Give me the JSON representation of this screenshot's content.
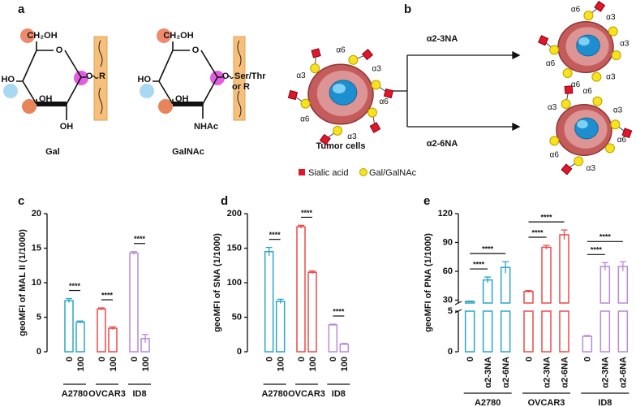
{
  "diagram": {
    "panel_a": "a",
    "panel_b": "b",
    "gal": {
      "ch2oh": "CH₂OH",
      "ho": "HO",
      "oh_upper": "OH",
      "oh_lower": "OH",
      "linker_o": "O",
      "aglycone": "R",
      "name": "Gal"
    },
    "galnac": {
      "ch2oh": "CH₂OH",
      "ho": "HO",
      "oh_upper": "OH",
      "nhac": "NHAc",
      "linker_o": "O",
      "aglycone": "Ser/Thr",
      "aglycone_alt": "or R",
      "name": "GalNAc"
    },
    "cells": {
      "main": {
        "label": "Tumor cells",
        "linkages": [
          "α3",
          "α6",
          "α3",
          "α6",
          "α6",
          "α3"
        ]
      },
      "after_23": {
        "linkages": [
          "α6",
          "α3",
          "α3",
          "α6",
          "α6",
          "α3"
        ]
      },
      "after_26": {
        "linkages": [
          "α3",
          "α6",
          "α3",
          "α6",
          "α6",
          "α3"
        ]
      }
    },
    "treatments": [
      "α2-3NA",
      "α2-6NA"
    ],
    "legend": [
      "Sialic acid",
      "Gal/GalNAc"
    ]
  },
  "chart_data": [
    {
      "type": "bar",
      "panel": "c",
      "ylabel": "geoMFI of MAL II (1/1000)",
      "categories": [
        "0",
        "100"
      ],
      "series": [
        {
          "name": "A2780",
          "color": "#2aa7c6",
          "values": [
            7.4,
            4.3
          ],
          "errors": [
            0.3,
            0.15
          ]
        },
        {
          "name": "OVCAR3",
          "color": "#ee4a4a",
          "values": [
            6.2,
            3.4
          ],
          "errors": [
            0.15,
            0.2
          ]
        },
        {
          "name": "ID8",
          "color": "#b98ad8",
          "values": [
            14.3,
            1.9
          ],
          "errors": [
            0.2,
            0.6
          ]
        }
      ],
      "ylim": [
        0,
        20
      ],
      "yticks": [
        0,
        5,
        10,
        15,
        20
      ],
      "comparisons": [
        {
          "series": 0,
          "between": [
            0,
            1
          ],
          "label": "****"
        },
        {
          "series": 1,
          "between": [
            0,
            1
          ],
          "label": "****"
        },
        {
          "series": 2,
          "between": [
            0,
            1
          ],
          "label": "****"
        }
      ]
    },
    {
      "type": "bar",
      "panel": "d",
      "ylabel": "geoMFI of SNA (1/1000)",
      "categories": [
        "0",
        "100"
      ],
      "series": [
        {
          "name": "A2780",
          "color": "#2aa7c6",
          "values": [
            145,
            73
          ],
          "errors": [
            6,
            3
          ]
        },
        {
          "name": "OVCAR3",
          "color": "#ee4a4a",
          "values": [
            181,
            115
          ],
          "errors": [
            2,
            2
          ]
        },
        {
          "name": "ID8",
          "color": "#b98ad8",
          "values": [
            39,
            11
          ],
          "errors": [
            1,
            1
          ]
        }
      ],
      "ylim": [
        0,
        200
      ],
      "yticks": [
        0,
        50,
        100,
        150,
        200
      ],
      "comparisons": [
        {
          "series": 0,
          "between": [
            0,
            1
          ],
          "label": "****"
        },
        {
          "series": 1,
          "between": [
            0,
            1
          ],
          "label": "****"
        },
        {
          "series": 2,
          "between": [
            0,
            1
          ],
          "label": "****"
        }
      ]
    },
    {
      "type": "bar",
      "panel": "e",
      "ylabel": "geoMFI of PNA (1/1000)",
      "categories": [
        "0",
        "α2-3NA",
        "α2-6NA"
      ],
      "series": [
        {
          "name": "A2780",
          "color": "#2aa7c6",
          "values": [
            28.5,
            51,
            64
          ],
          "errors": [
            0.5,
            3,
            6
          ]
        },
        {
          "name": "OVCAR3",
          "color": "#ee4a4a",
          "values": [
            39,
            85,
            98
          ],
          "errors": [
            1,
            2,
            5
          ]
        },
        {
          "name": "ID8",
          "color": "#b98ad8",
          "values": [
            1.9,
            65,
            65
          ],
          "errors": [
            0.1,
            4,
            5
          ]
        }
      ],
      "ylim": [
        0,
        120
      ],
      "axis_break": [
        5,
        27
      ],
      "yticks": [
        0,
        5,
        30,
        60,
        90,
        120
      ],
      "comparisons": [
        {
          "series": 0,
          "between": [
            0,
            1
          ],
          "label": "****"
        },
        {
          "series": 0,
          "between": [
            0,
            2
          ],
          "label": "****"
        },
        {
          "series": 1,
          "between": [
            0,
            1
          ],
          "label": "****"
        },
        {
          "series": 1,
          "between": [
            0,
            2
          ],
          "label": "****"
        },
        {
          "series": 2,
          "between": [
            0,
            1
          ],
          "label": "****"
        },
        {
          "series": 2,
          "between": [
            0,
            2
          ],
          "label": "****"
        }
      ]
    }
  ]
}
